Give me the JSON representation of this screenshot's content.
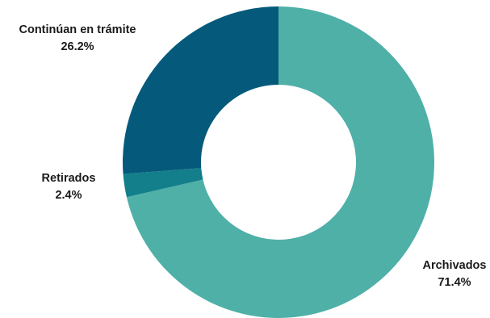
{
  "chart_data": {
    "type": "pie",
    "variant": "donut",
    "title": "",
    "legend": "none",
    "start_angle_deg": 0,
    "direction": "clockwise",
    "slices": [
      {
        "label": "Archivados",
        "value": 71.4,
        "value_label": "71.4%",
        "color": "#4fb0a8"
      },
      {
        "label": "Retirados",
        "value": 2.4,
        "value_label": "2.4%",
        "color": "#127f8a"
      },
      {
        "label": "Continúan en trámite",
        "value": 26.2,
        "value_label": "26.2%",
        "color": "#055a7b"
      }
    ]
  }
}
